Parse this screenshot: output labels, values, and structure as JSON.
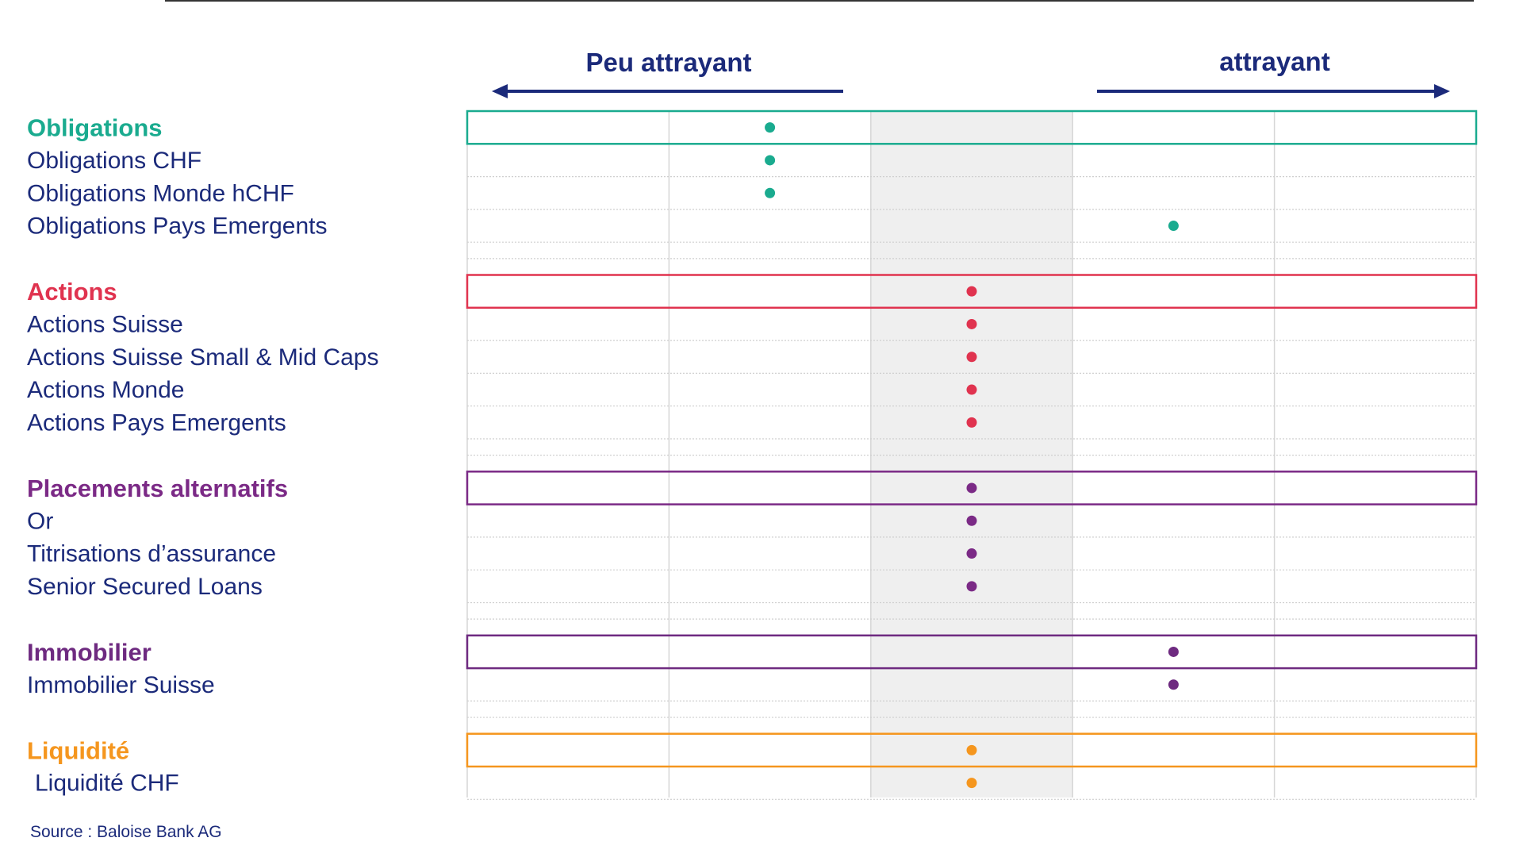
{
  "chart_data": {
    "type": "scatter",
    "arrow_left_label": "Peu attrayant",
    "arrow_right_label": "attrayant",
    "scale_min": 1,
    "scale_max": 5,
    "neutral_column": 3,
    "groups": [
      {
        "name": "Obligations",
        "color": "#1aab8f",
        "value": 2,
        "items": [
          {
            "label": "Obligations CHF",
            "value": 2
          },
          {
            "label": "Obligations Monde hCHF",
            "value": 2
          },
          {
            "label": "Obligations Pays Emergents",
            "value": 4
          }
        ]
      },
      {
        "name": "Actions",
        "color": "#e0334f",
        "value": 3,
        "items": [
          {
            "label": "Actions Suisse",
            "value": 3
          },
          {
            "label": "Actions Suisse Small & Mid Caps",
            "value": 3
          },
          {
            "label": "Actions Monde",
            "value": 3
          },
          {
            "label": "Actions Pays Emergents",
            "value": 3
          }
        ]
      },
      {
        "name": "Placements alternatifs",
        "color": "#7b2a86",
        "value": 3,
        "items": [
          {
            "label": "Or",
            "value": 3
          },
          {
            "label": "Titrisations d’assurance",
            "value": 3
          },
          {
            "label": "Senior Secured Loans",
            "value": 3
          }
        ]
      },
      {
        "name": "Immobilier",
        "color": "#6e2a80",
        "value": 4,
        "items": [
          {
            "label": "Immobilier Suisse",
            "value": 4
          }
        ]
      },
      {
        "name": "Liquidité",
        "color": "#f5961e",
        "value": 3,
        "items": [
          {
            "label": "Liquidité CHF",
            "value": 3
          }
        ]
      }
    ],
    "text_color": "#1b2a7a",
    "source": "Source : Baloise Bank AG"
  }
}
